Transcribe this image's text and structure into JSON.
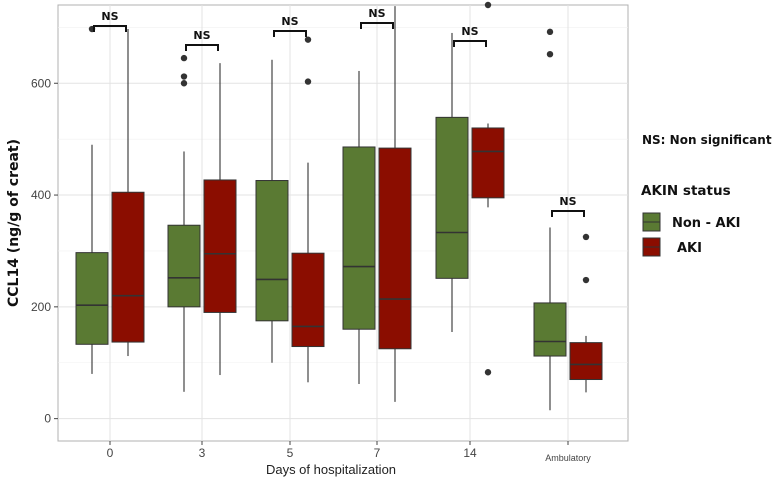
{
  "chart_data": {
    "type": "boxplot",
    "title": "",
    "xlabel": "Days of hospitalization",
    "ylabel": "CCL14 (ng/g of creat)",
    "ylim": [
      -40,
      740
    ],
    "yticks": [
      0,
      200,
      400,
      600
    ],
    "categories": [
      "0",
      "3",
      "5",
      "7",
      "14",
      "Ambulatory"
    ],
    "legend_title": "AKIN status",
    "legend_position": "right",
    "note": "NS: Non significant",
    "significance": [
      "NS",
      "NS",
      "NS",
      "NS",
      "NS",
      "NS"
    ],
    "colors": {
      "Non - AKI": "#5a7a33",
      "AKI": "#8b0d00"
    },
    "series": [
      {
        "name": "Non - AKI",
        "legend_label": "Non - AKI",
        "color": "#5a7a33",
        "boxes": [
          {
            "whisker_low": 80,
            "q1": 133,
            "median": 203,
            "q3": 297,
            "whisker_high": 490,
            "outliers": [
              697
            ]
          },
          {
            "whisker_low": 48,
            "q1": 200,
            "median": 252,
            "q3": 346,
            "whisker_high": 478,
            "outliers": [
              600,
              612,
              645
            ]
          },
          {
            "whisker_low": 100,
            "q1": 175,
            "median": 249,
            "q3": 426,
            "whisker_high": 642,
            "outliers": []
          },
          {
            "whisker_low": 62,
            "q1": 160,
            "median": 272,
            "q3": 486,
            "whisker_high": 622,
            "outliers": []
          },
          {
            "whisker_low": 155,
            "q1": 251,
            "median": 333,
            "q3": 539,
            "whisker_high": 690,
            "outliers": []
          },
          {
            "whisker_low": 15,
            "q1": 112,
            "median": 138,
            "q3": 207,
            "whisker_high": 342,
            "outliers": [
              652,
              692
            ]
          }
        ]
      },
      {
        "name": "AKI",
        "legend_label": "AKI",
        "color": "#8b0d00",
        "boxes": [
          {
            "whisker_low": 112,
            "q1": 137,
            "median": 220,
            "q3": 405,
            "whisker_high": 697,
            "outliers": []
          },
          {
            "whisker_low": 78,
            "q1": 190,
            "median": 295,
            "q3": 427,
            "whisker_high": 636,
            "outliers": []
          },
          {
            "whisker_low": 65,
            "q1": 129,
            "median": 165,
            "q3": 296,
            "whisker_high": 458,
            "outliers": [
              603,
              678
            ]
          },
          {
            "whisker_low": 30,
            "q1": 125,
            "median": 214,
            "q3": 484,
            "whisker_high": 738,
            "outliers": []
          },
          {
            "whisker_low": 378,
            "q1": 395,
            "median": 478,
            "q3": 520,
            "whisker_high": 528,
            "outliers": [
              83,
              740
            ]
          },
          {
            "whisker_low": 47,
            "q1": 70,
            "median": 97,
            "q3": 136,
            "whisker_high": 148,
            "outliers": [
              248,
              325
            ]
          }
        ]
      }
    ]
  }
}
